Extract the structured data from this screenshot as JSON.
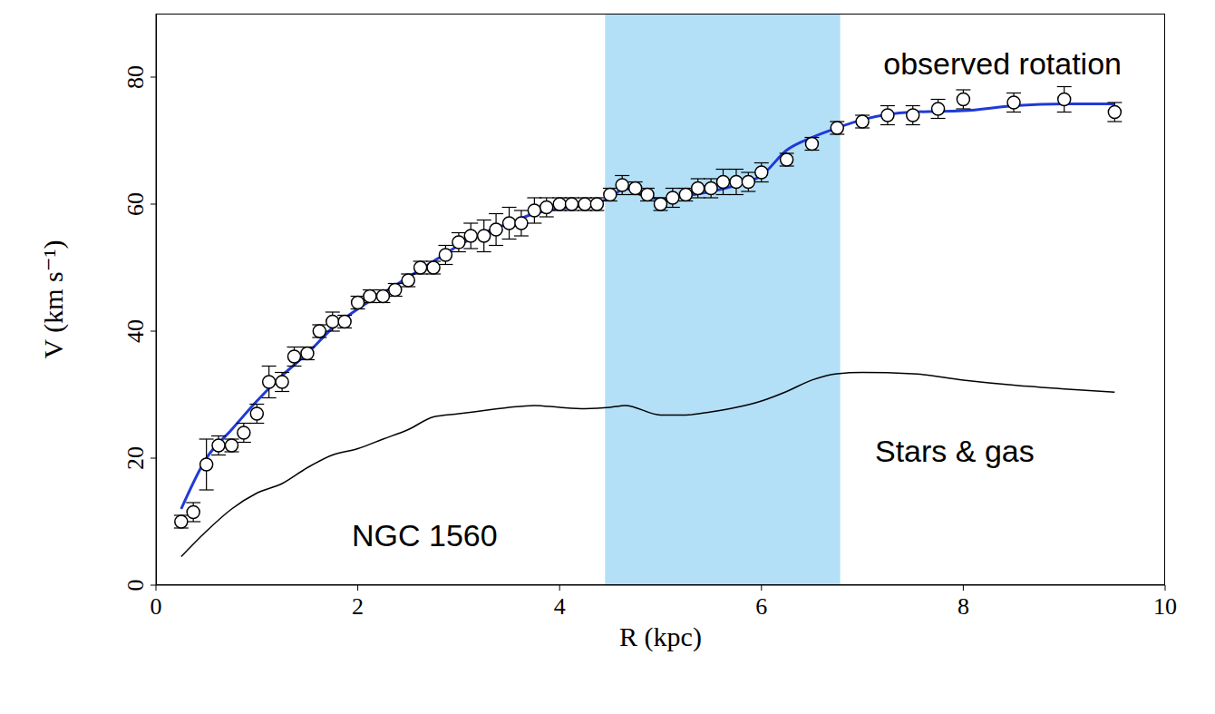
{
  "chart_data": {
    "type": "line",
    "title": "NGC 1560",
    "x_label": "R (kpc)",
    "y_label": "V (km s⁻¹)",
    "xlim": [
      0,
      10
    ],
    "ylim": [
      0,
      90
    ],
    "xticks": [
      0,
      2,
      4,
      6,
      8,
      10
    ],
    "yticks": [
      0,
      20,
      40,
      60,
      80
    ],
    "grid": false,
    "highlight": {
      "x": [
        4.45,
        6.78
      ],
      "color": "#b3e0f7"
    },
    "series": [
      {
        "name": "observed rotation",
        "type": "scatter",
        "color": "#000000",
        "marker": "circle",
        "x": [
          0.25,
          0.37,
          0.5,
          0.62,
          0.75,
          0.87,
          1.0,
          1.12,
          1.25,
          1.37,
          1.5,
          1.62,
          1.75,
          1.87,
          2.0,
          2.12,
          2.25,
          2.37,
          2.5,
          2.62,
          2.75,
          2.87,
          3.0,
          3.12,
          3.25,
          3.37,
          3.5,
          3.62,
          3.75,
          3.87,
          4.0,
          4.12,
          4.25,
          4.37,
          4.5,
          4.62,
          4.75,
          4.87,
          5.0,
          5.12,
          5.25,
          5.37,
          5.5,
          5.62,
          5.75,
          5.87,
          6.0,
          6.25,
          6.5,
          6.75,
          7.0,
          7.25,
          7.5,
          7.75,
          8.0,
          8.5,
          9.0,
          9.5
        ],
        "values": [
          10,
          11.5,
          19,
          22,
          22,
          24,
          27,
          32,
          32,
          36,
          36.5,
          40,
          41.5,
          41.5,
          44.5,
          45.5,
          45.5,
          46.5,
          48,
          50,
          50,
          52,
          54,
          55,
          55,
          56,
          57,
          57,
          59,
          59.5,
          60,
          60,
          60,
          60,
          61.5,
          63,
          62.5,
          61.5,
          60,
          61,
          61.5,
          62.5,
          62.5,
          63.5,
          63.5,
          63.5,
          65,
          67,
          69.5,
          72,
          73,
          74,
          74,
          75,
          76.5,
          76,
          76.5,
          74.5
        ],
        "errors": [
          1,
          1.5,
          4,
          1.5,
          1,
          1.5,
          1.5,
          2.5,
          1.5,
          1.5,
          1,
          1,
          1.5,
          1,
          1,
          1,
          1,
          1,
          1,
          1,
          1,
          1.5,
          1.5,
          2,
          2.5,
          2.5,
          2.5,
          2,
          2,
          1.5,
          1,
          1,
          1,
          1,
          1,
          1.5,
          1,
          1,
          1,
          1.5,
          1,
          1.5,
          1.5,
          2,
          2,
          1.5,
          1.5,
          1,
          1,
          1,
          1,
          1.5,
          1.5,
          1.5,
          1.5,
          1.5,
          2,
          1.5
        ]
      },
      {
        "type": "line",
        "color": "#1f3ad8",
        "line_style": "solid",
        "x": [
          0.25,
          0.5,
          0.75,
          1.0,
          1.25,
          1.5,
          1.75,
          2.0,
          2.25,
          2.5,
          2.75,
          3.0,
          3.25,
          3.5,
          3.75,
          4.0,
          4.25,
          4.5,
          4.65,
          4.8,
          5.0,
          5.25,
          5.5,
          5.75,
          6.0,
          6.25,
          6.5,
          6.75,
          7.0,
          7.5,
          8.0,
          8.5,
          9.0,
          9.5
        ],
        "values": [
          12,
          20,
          24.5,
          29,
          33,
          36.5,
          40.5,
          43.5,
          46,
          48.5,
          51,
          53.5,
          55.5,
          57,
          58.5,
          59.3,
          59.8,
          61,
          62.5,
          61.5,
          60.8,
          61.3,
          62,
          63,
          64.5,
          68.5,
          70.5,
          72,
          73.3,
          74.5,
          74.7,
          75.5,
          75.8,
          75.8
        ]
      },
      {
        "name": "Stars & gas",
        "type": "line",
        "color": "#000000",
        "line_style": "solid",
        "x": [
          0.25,
          0.5,
          0.75,
          1.0,
          1.25,
          1.5,
          1.75,
          2.0,
          2.25,
          2.5,
          2.75,
          3.0,
          3.25,
          3.5,
          3.75,
          4.0,
          4.25,
          4.5,
          4.65,
          5.0,
          5.25,
          5.5,
          5.75,
          6.0,
          6.25,
          6.5,
          6.75,
          7.0,
          7.5,
          8.0,
          8.5,
          9.0,
          9.5
        ],
        "values": [
          4.5,
          8.5,
          12,
          14.5,
          16,
          18.5,
          20.5,
          21.5,
          23,
          24.5,
          26.5,
          27,
          27.5,
          28,
          28.3,
          28,
          27.8,
          28,
          28.3,
          26.8,
          26.8,
          27.3,
          28,
          29,
          30.5,
          32.3,
          33.3,
          33.5,
          33.3,
          32.3,
          31.5,
          30.9,
          30.4
        ]
      }
    ]
  }
}
